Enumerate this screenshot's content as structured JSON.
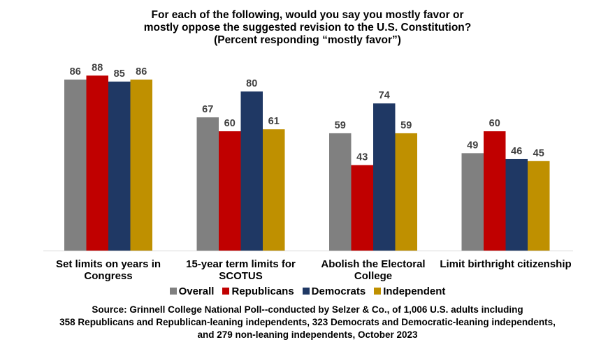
{
  "chart_data": {
    "type": "bar",
    "title": [
      "For each of the following, would you say you mostly favor or",
      "mostly oppose the suggested revision to the U.S. Constitution?",
      "(Percent responding “mostly favor”)"
    ],
    "categories": [
      [
        "Set limits on years in",
        "Congress"
      ],
      [
        "15-year term limits for",
        "SCOTUS"
      ],
      [
        "Abolish the Electoral",
        "College"
      ],
      [
        "Limit birthright citizenship"
      ]
    ],
    "series": [
      {
        "name": "Overall",
        "color": "#808080",
        "values": [
          86,
          67,
          59,
          49
        ]
      },
      {
        "name": "Republicans",
        "color": "#C00000",
        "values": [
          88,
          60,
          43,
          60
        ]
      },
      {
        "name": "Democrats",
        "color": "#1F3864",
        "values": [
          85,
          80,
          74,
          46
        ]
      },
      {
        "name": "Independent",
        "color": "#BF9000",
        "values": [
          86,
          61,
          59,
          45
        ]
      }
    ],
    "ylim": [
      0,
      100
    ],
    "grid": false,
    "legend": "bottom",
    "source": [
      "Source: Grinnell College National Poll--conducted by Selzer & Co., of 1,006 U.S. adults including",
      "358 Republicans and Republican-leaning independents, 323 Democrats and Democratic-leaning independents,",
      "and 279 non-leaning independents, October 2023"
    ]
  }
}
